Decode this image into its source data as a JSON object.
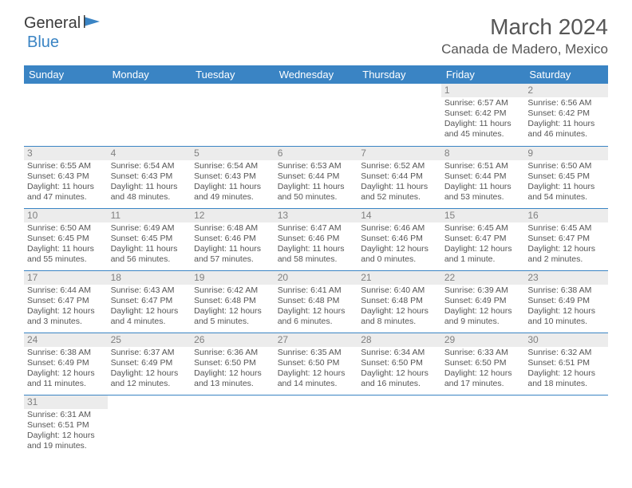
{
  "brand": {
    "part1": "General",
    "part2": "Blue"
  },
  "title": "March 2024",
  "location": "Canada de Madero, Mexico",
  "colors": {
    "header_bg": "#3a84c4",
    "header_text": "#ffffff",
    "daynum_bg": "#ececec",
    "daynum_text": "#808080",
    "body_text": "#555555",
    "title_text": "#565656",
    "row_border": "#3a84c4"
  },
  "weekdays": [
    "Sunday",
    "Monday",
    "Tuesday",
    "Wednesday",
    "Thursday",
    "Friday",
    "Saturday"
  ],
  "weeks": [
    [
      null,
      null,
      null,
      null,
      null,
      {
        "n": "1",
        "sr": "Sunrise: 6:57 AM",
        "ss": "Sunset: 6:42 PM",
        "dl1": "Daylight: 11 hours",
        "dl2": "and 45 minutes."
      },
      {
        "n": "2",
        "sr": "Sunrise: 6:56 AM",
        "ss": "Sunset: 6:42 PM",
        "dl1": "Daylight: 11 hours",
        "dl2": "and 46 minutes."
      }
    ],
    [
      {
        "n": "3",
        "sr": "Sunrise: 6:55 AM",
        "ss": "Sunset: 6:43 PM",
        "dl1": "Daylight: 11 hours",
        "dl2": "and 47 minutes."
      },
      {
        "n": "4",
        "sr": "Sunrise: 6:54 AM",
        "ss": "Sunset: 6:43 PM",
        "dl1": "Daylight: 11 hours",
        "dl2": "and 48 minutes."
      },
      {
        "n": "5",
        "sr": "Sunrise: 6:54 AM",
        "ss": "Sunset: 6:43 PM",
        "dl1": "Daylight: 11 hours",
        "dl2": "and 49 minutes."
      },
      {
        "n": "6",
        "sr": "Sunrise: 6:53 AM",
        "ss": "Sunset: 6:44 PM",
        "dl1": "Daylight: 11 hours",
        "dl2": "and 50 minutes."
      },
      {
        "n": "7",
        "sr": "Sunrise: 6:52 AM",
        "ss": "Sunset: 6:44 PM",
        "dl1": "Daylight: 11 hours",
        "dl2": "and 52 minutes."
      },
      {
        "n": "8",
        "sr": "Sunrise: 6:51 AM",
        "ss": "Sunset: 6:44 PM",
        "dl1": "Daylight: 11 hours",
        "dl2": "and 53 minutes."
      },
      {
        "n": "9",
        "sr": "Sunrise: 6:50 AM",
        "ss": "Sunset: 6:45 PM",
        "dl1": "Daylight: 11 hours",
        "dl2": "and 54 minutes."
      }
    ],
    [
      {
        "n": "10",
        "sr": "Sunrise: 6:50 AM",
        "ss": "Sunset: 6:45 PM",
        "dl1": "Daylight: 11 hours",
        "dl2": "and 55 minutes."
      },
      {
        "n": "11",
        "sr": "Sunrise: 6:49 AM",
        "ss": "Sunset: 6:45 PM",
        "dl1": "Daylight: 11 hours",
        "dl2": "and 56 minutes."
      },
      {
        "n": "12",
        "sr": "Sunrise: 6:48 AM",
        "ss": "Sunset: 6:46 PM",
        "dl1": "Daylight: 11 hours",
        "dl2": "and 57 minutes."
      },
      {
        "n": "13",
        "sr": "Sunrise: 6:47 AM",
        "ss": "Sunset: 6:46 PM",
        "dl1": "Daylight: 11 hours",
        "dl2": "and 58 minutes."
      },
      {
        "n": "14",
        "sr": "Sunrise: 6:46 AM",
        "ss": "Sunset: 6:46 PM",
        "dl1": "Daylight: 12 hours",
        "dl2": "and 0 minutes."
      },
      {
        "n": "15",
        "sr": "Sunrise: 6:45 AM",
        "ss": "Sunset: 6:47 PM",
        "dl1": "Daylight: 12 hours",
        "dl2": "and 1 minute."
      },
      {
        "n": "16",
        "sr": "Sunrise: 6:45 AM",
        "ss": "Sunset: 6:47 PM",
        "dl1": "Daylight: 12 hours",
        "dl2": "and 2 minutes."
      }
    ],
    [
      {
        "n": "17",
        "sr": "Sunrise: 6:44 AM",
        "ss": "Sunset: 6:47 PM",
        "dl1": "Daylight: 12 hours",
        "dl2": "and 3 minutes."
      },
      {
        "n": "18",
        "sr": "Sunrise: 6:43 AM",
        "ss": "Sunset: 6:47 PM",
        "dl1": "Daylight: 12 hours",
        "dl2": "and 4 minutes."
      },
      {
        "n": "19",
        "sr": "Sunrise: 6:42 AM",
        "ss": "Sunset: 6:48 PM",
        "dl1": "Daylight: 12 hours",
        "dl2": "and 5 minutes."
      },
      {
        "n": "20",
        "sr": "Sunrise: 6:41 AM",
        "ss": "Sunset: 6:48 PM",
        "dl1": "Daylight: 12 hours",
        "dl2": "and 6 minutes."
      },
      {
        "n": "21",
        "sr": "Sunrise: 6:40 AM",
        "ss": "Sunset: 6:48 PM",
        "dl1": "Daylight: 12 hours",
        "dl2": "and 8 minutes."
      },
      {
        "n": "22",
        "sr": "Sunrise: 6:39 AM",
        "ss": "Sunset: 6:49 PM",
        "dl1": "Daylight: 12 hours",
        "dl2": "and 9 minutes."
      },
      {
        "n": "23",
        "sr": "Sunrise: 6:38 AM",
        "ss": "Sunset: 6:49 PM",
        "dl1": "Daylight: 12 hours",
        "dl2": "and 10 minutes."
      }
    ],
    [
      {
        "n": "24",
        "sr": "Sunrise: 6:38 AM",
        "ss": "Sunset: 6:49 PM",
        "dl1": "Daylight: 12 hours",
        "dl2": "and 11 minutes."
      },
      {
        "n": "25",
        "sr": "Sunrise: 6:37 AM",
        "ss": "Sunset: 6:49 PM",
        "dl1": "Daylight: 12 hours",
        "dl2": "and 12 minutes."
      },
      {
        "n": "26",
        "sr": "Sunrise: 6:36 AM",
        "ss": "Sunset: 6:50 PM",
        "dl1": "Daylight: 12 hours",
        "dl2": "and 13 minutes."
      },
      {
        "n": "27",
        "sr": "Sunrise: 6:35 AM",
        "ss": "Sunset: 6:50 PM",
        "dl1": "Daylight: 12 hours",
        "dl2": "and 14 minutes."
      },
      {
        "n": "28",
        "sr": "Sunrise: 6:34 AM",
        "ss": "Sunset: 6:50 PM",
        "dl1": "Daylight: 12 hours",
        "dl2": "and 16 minutes."
      },
      {
        "n": "29",
        "sr": "Sunrise: 6:33 AM",
        "ss": "Sunset: 6:50 PM",
        "dl1": "Daylight: 12 hours",
        "dl2": "and 17 minutes."
      },
      {
        "n": "30",
        "sr": "Sunrise: 6:32 AM",
        "ss": "Sunset: 6:51 PM",
        "dl1": "Daylight: 12 hours",
        "dl2": "and 18 minutes."
      }
    ],
    [
      {
        "n": "31",
        "sr": "Sunrise: 6:31 AM",
        "ss": "Sunset: 6:51 PM",
        "dl1": "Daylight: 12 hours",
        "dl2": "and 19 minutes."
      },
      null,
      null,
      null,
      null,
      null,
      null
    ]
  ]
}
